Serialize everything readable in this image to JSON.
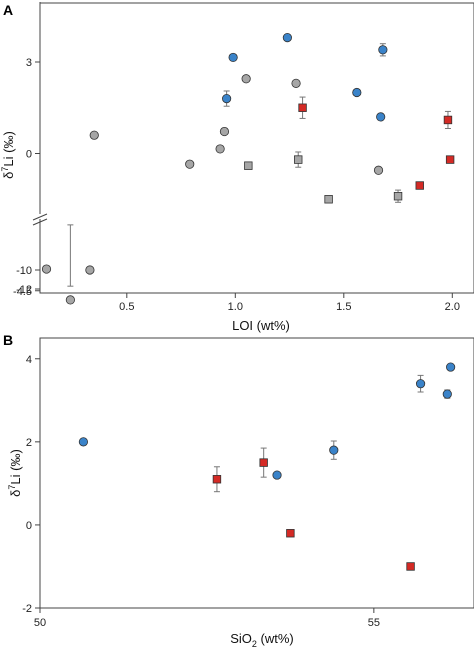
{
  "chart_data": [
    {
      "type": "scatter",
      "panel_label": "A",
      "xlabel": "LOI (wt%)",
      "ylabel": "δ7Li (‰)",
      "xlim": [
        0.1,
        2.1
      ],
      "ylim": [
        -12,
        4.8
      ],
      "broken_y_axis": true,
      "y_segments": [
        [
          -12,
          -9.5
        ],
        [
          -5.2,
          4.8
        ]
      ],
      "x_ticks": [
        "0.5",
        "1.0",
        "1.5",
        "2.0"
      ],
      "x_tick_values": [
        0.5,
        1.0,
        1.5,
        2.0
      ],
      "y_ticks": [
        "-12",
        "-10",
        "-4.5",
        "0",
        "3"
      ],
      "y_tick_values": [
        -12,
        -10,
        -4.5,
        0,
        3
      ],
      "grid": false,
      "series": [
        {
          "marker": "circle",
          "color": "#3a83c9",
          "points": [
            {
              "x": 0.96,
              "y": 1.8,
              "err": 0.25
            },
            {
              "x": 0.99,
              "y": 3.15,
              "err": 0
            },
            {
              "x": 1.24,
              "y": 3.8,
              "err": 0
            },
            {
              "x": 1.56,
              "y": 2.0,
              "err": 0
            },
            {
              "x": 1.67,
              "y": 1.2,
              "err": 0
            },
            {
              "x": 1.68,
              "y": 3.4,
              "err": 0.2
            }
          ]
        },
        {
          "marker": "circle",
          "color": "#a6a6a6",
          "points": [
            {
              "x": 0.13,
              "y": -9.9,
              "err": 0
            },
            {
              "x": 0.24,
              "y": -4.8,
              "err": 0.45
            },
            {
              "x": 0.33,
              "y": -10.0,
              "err": 0
            },
            {
              "x": 0.35,
              "y": 0.6,
              "err": 0
            },
            {
              "x": 0.79,
              "y": -0.35,
              "err": 0
            },
            {
              "x": 0.93,
              "y": 0.15,
              "err": 0
            },
            {
              "x": 0.95,
              "y": 0.72,
              "err": 0
            },
            {
              "x": 1.05,
              "y": 2.45,
              "err": 0
            },
            {
              "x": 1.28,
              "y": 2.3,
              "err": 0
            },
            {
              "x": 1.66,
              "y": -0.55,
              "err": 0
            }
          ]
        },
        {
          "marker": "square",
          "color": "#a6a6a6",
          "points": [
            {
              "x": 1.06,
              "y": -0.4,
              "err": 0
            },
            {
              "x": 1.29,
              "y": -0.2,
              "err": 0.25
            },
            {
              "x": 1.43,
              "y": -1.5,
              "err": 0
            },
            {
              "x": 1.75,
              "y": -1.4,
              "err": 0.2
            }
          ]
        },
        {
          "marker": "square",
          "color": "#d42a25",
          "points": [
            {
              "x": 1.31,
              "y": 1.5,
              "err": 0.35
            },
            {
              "x": 1.85,
              "y": -1.05,
              "err": 0
            },
            {
              "x": 1.98,
              "y": 1.1,
              "err": 0.28
            },
            {
              "x": 1.99,
              "y": -0.2,
              "err": 0
            }
          ]
        }
      ]
    },
    {
      "type": "scatter",
      "panel_label": "B",
      "xlabel": "SiO2 (wt%)",
      "ylabel": "δ7Li (‰)",
      "xlim": [
        50,
        56.5
      ],
      "ylim": [
        -2,
        4.5
      ],
      "x_ticks": [
        "50",
        "55"
      ],
      "x_tick_values": [
        50,
        55
      ],
      "y_ticks": [
        "-2",
        "0",
        "2",
        "4"
      ],
      "y_tick_values": [
        -2,
        0,
        2,
        4
      ],
      "grid": false,
      "series": [
        {
          "marker": "circle",
          "color": "#3a83c9",
          "points": [
            {
              "x": 50.65,
              "y": 2.0,
              "err": 0
            },
            {
              "x": 53.55,
              "y": 1.2,
              "err": 0
            },
            {
              "x": 54.4,
              "y": 1.8,
              "err": 0.22
            },
            {
              "x": 55.7,
              "y": 3.4,
              "err": 0.2
            },
            {
              "x": 56.1,
              "y": 3.15,
              "err": 0.1
            },
            {
              "x": 56.15,
              "y": 3.8,
              "err": 0
            }
          ]
        },
        {
          "marker": "square",
          "color": "#d42a25",
          "points": [
            {
              "x": 52.65,
              "y": 1.1,
              "err": 0.3
            },
            {
              "x": 53.35,
              "y": 1.5,
              "err": 0.35
            },
            {
              "x": 53.75,
              "y": -0.2,
              "err": 0.07
            },
            {
              "x": 55.55,
              "y": -1.0,
              "err": 0
            }
          ]
        }
      ]
    }
  ],
  "labels": {
    "panel_a": "A",
    "panel_b": "B",
    "a_xlabel": "LOI (wt%)",
    "a_ylabel_prefix": "δ",
    "a_ylabel_sup": "7",
    "a_ylabel_suffix": "Li (‰)",
    "b_xlabel_prefix": "SiO",
    "b_xlabel_sub": "2",
    "b_xlabel_suffix": " (wt%)",
    "b_ylabel_prefix": "δ",
    "b_ylabel_sup": "7",
    "b_ylabel_suffix": "Li (‰)"
  }
}
